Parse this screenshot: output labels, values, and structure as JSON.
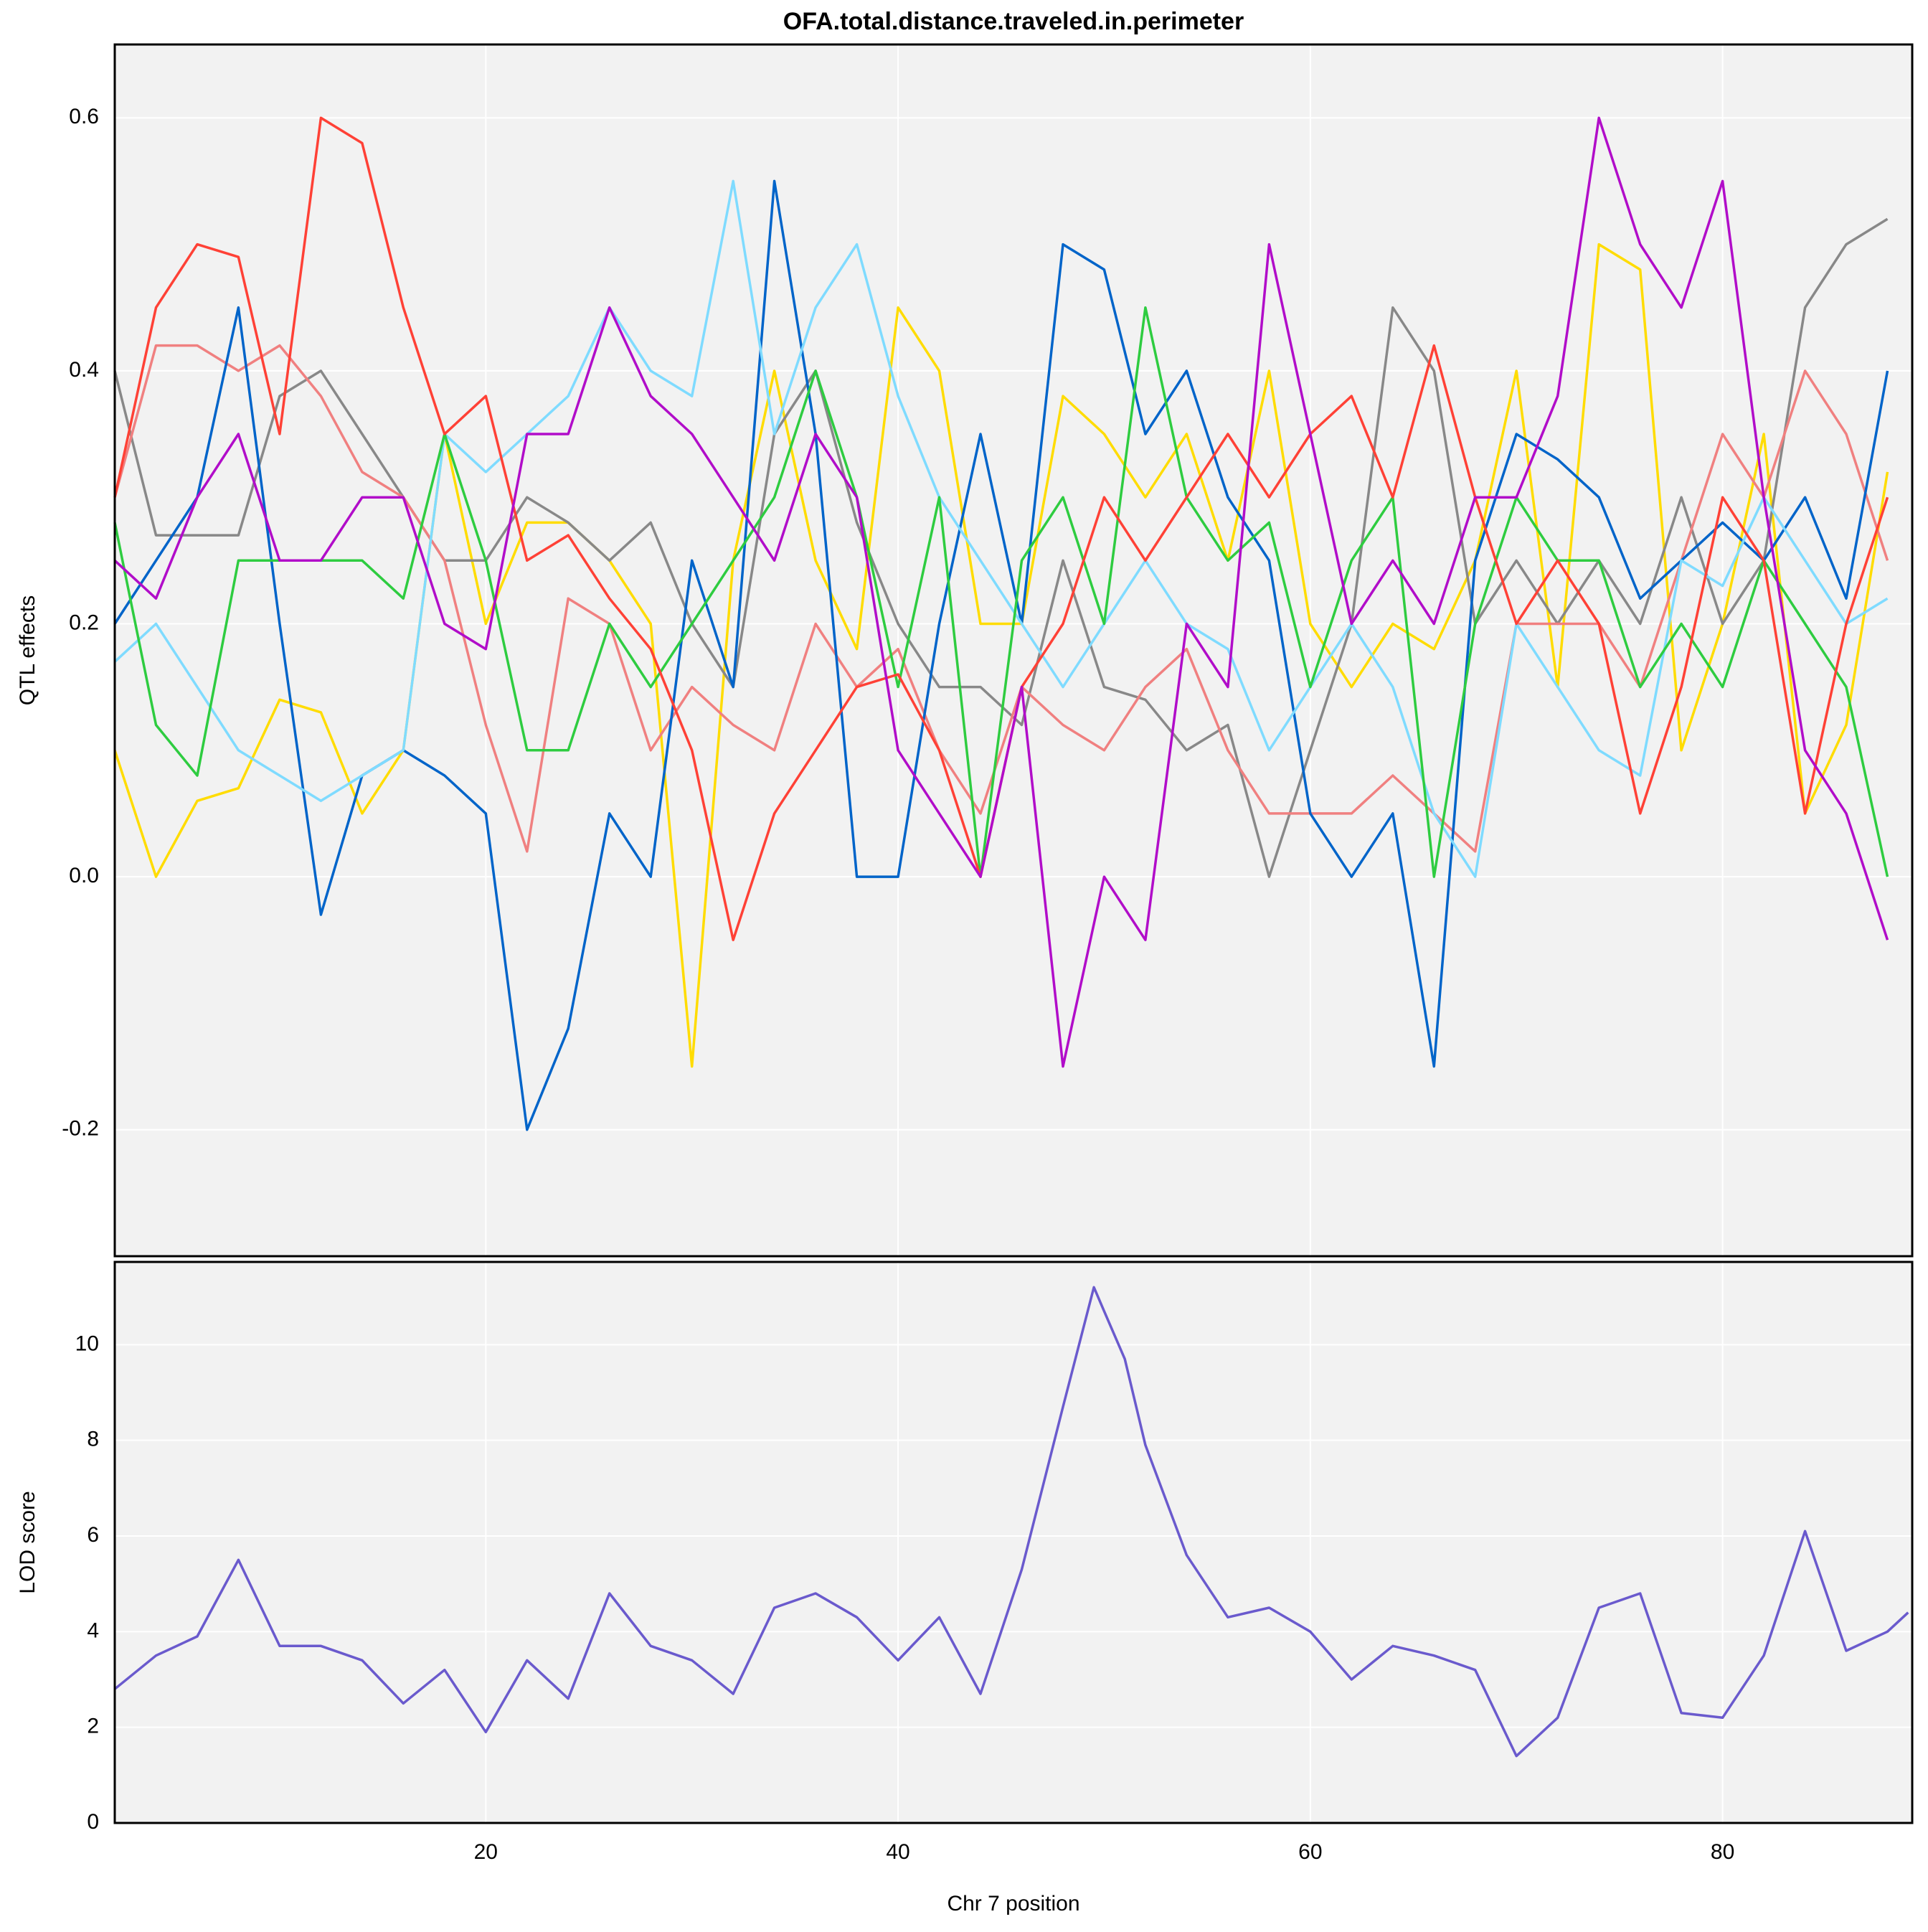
{
  "chart_data": [
    {
      "type": "line",
      "title": "OFA.total.distance.traveled.in.perimeter",
      "ylabel": "QTL effects",
      "x": [
        2,
        4,
        6,
        8,
        10,
        12,
        14,
        16,
        18,
        20,
        22,
        24,
        26,
        28,
        30,
        32,
        34,
        36,
        38,
        40,
        42,
        44,
        46,
        48,
        50,
        52,
        54,
        56,
        58,
        60,
        62,
        64,
        66,
        68,
        70,
        72,
        74,
        76,
        78,
        80,
        82,
        84,
        86,
        88
      ],
      "series": [
        {
          "color": "#FFDC00",
          "values": [
            0.1,
            0,
            0.06,
            0.07,
            0.14,
            0.13,
            0.05,
            0.1,
            0.35,
            0.2,
            0.28,
            0.28,
            0.25,
            0.2,
            -0.15,
            0.25,
            0.4,
            0.25,
            0.18,
            0.45,
            0.4,
            0.2,
            0.2,
            0.38,
            0.35,
            0.3,
            0.35,
            0.25,
            0.4,
            0.2,
            0.15,
            0.2,
            0.18,
            0.25,
            0.4,
            0.15,
            0.5,
            0.48,
            0.1,
            0.2,
            0.35,
            0.05,
            0.12,
            0.32
          ]
        },
        {
          "color": "#888888",
          "values": [
            0.4,
            0.27,
            0.27,
            0.27,
            0.38,
            0.4,
            0.35,
            0.3,
            0.25,
            0.25,
            0.3,
            0.28,
            0.25,
            0.28,
            0.2,
            0.15,
            0.35,
            0.4,
            0.28,
            0.2,
            0.15,
            0.15,
            0.12,
            0.25,
            0.15,
            0.14,
            0.1,
            0.12,
            0,
            0.1,
            0.2,
            0.45,
            0.4,
            0.2,
            0.25,
            0.2,
            0.25,
            0.2,
            0.3,
            0.2,
            0.25,
            0.45,
            0.5,
            0.52
          ]
        },
        {
          "color": "#F08080",
          "values": [
            0.3,
            0.42,
            0.42,
            0.4,
            0.42,
            0.38,
            0.32,
            0.3,
            0.25,
            0.12,
            0.02,
            0.22,
            0.2,
            0.1,
            0.15,
            0.12,
            0.1,
            0.2,
            0.15,
            0.18,
            0.1,
            0.05,
            0.15,
            0.12,
            0.1,
            0.15,
            0.18,
            0.1,
            0.05,
            0.05,
            0.05,
            0.08,
            0.05,
            0.02,
            0.2,
            0.2,
            0.2,
            0.15,
            0.25,
            0.35,
            0.3,
            0.4,
            0.35,
            0.25
          ]
        },
        {
          "color": "#0064C9",
          "values": [
            0.2,
            0.25,
            0.3,
            0.45,
            0.2,
            -0.03,
            0.08,
            0.1,
            0.08,
            0.05,
            -0.2,
            -0.12,
            0.05,
            0,
            0.25,
            0.15,
            0.55,
            0.35,
            0,
            0,
            0.2,
            0.35,
            0.2,
            0.5,
            0.48,
            0.35,
            0.4,
            0.3,
            0.25,
            0.05,
            0,
            0.05,
            -0.15,
            0.25,
            0.35,
            0.33,
            0.3,
            0.22,
            0.25,
            0.28,
            0.25,
            0.3,
            0.22,
            0.4
          ]
        },
        {
          "color": "#7FDBFF",
          "values": [
            0.17,
            0.2,
            0.15,
            0.1,
            0.08,
            0.06,
            0.08,
            0.1,
            0.35,
            0.32,
            0.35,
            0.38,
            0.45,
            0.4,
            0.38,
            0.55,
            0.35,
            0.45,
            0.5,
            0.38,
            0.3,
            0.25,
            0.2,
            0.15,
            0.2,
            0.25,
            0.2,
            0.18,
            0.1,
            0.15,
            0.2,
            0.15,
            0.05,
            0,
            0.2,
            0.15,
            0.1,
            0.08,
            0.25,
            0.23,
            0.3,
            0.25,
            0.2,
            0.22
          ]
        },
        {
          "color": "#2ECC40",
          "values": [
            0.28,
            0.12,
            0.08,
            0.25,
            0.25,
            0.25,
            0.25,
            0.22,
            0.35,
            0.25,
            0.1,
            0.1,
            0.2,
            0.15,
            0.2,
            0.25,
            0.3,
            0.4,
            0.3,
            0.15,
            0.3,
            0,
            0.25,
            0.3,
            0.2,
            0.45,
            0.3,
            0.25,
            0.28,
            0.15,
            0.25,
            0.3,
            0,
            0.2,
            0.3,
            0.25,
            0.25,
            0.15,
            0.2,
            0.15,
            0.25,
            0.2,
            0.15,
            0
          ]
        },
        {
          "color": "#FF4136",
          "values": [
            0.3,
            0.45,
            0.5,
            0.49,
            0.35,
            0.6,
            0.58,
            0.45,
            0.35,
            0.38,
            0.25,
            0.27,
            0.22,
            0.18,
            0.1,
            -0.05,
            0.05,
            0.1,
            0.15,
            0.16,
            0.1,
            0,
            0.15,
            0.2,
            0.3,
            0.25,
            0.3,
            0.35,
            0.3,
            0.35,
            0.38,
            0.3,
            0.42,
            0.3,
            0.2,
            0.25,
            0.2,
            0.05,
            0.15,
            0.3,
            0.25,
            0.05,
            0.2,
            0.3
          ]
        },
        {
          "color": "#B10DC9",
          "values": [
            0.25,
            0.22,
            0.3,
            0.35,
            0.25,
            0.25,
            0.3,
            0.3,
            0.2,
            0.18,
            0.35,
            0.35,
            0.45,
            0.38,
            0.35,
            0.3,
            0.25,
            0.35,
            0.3,
            0.1,
            0.05,
            0,
            0.15,
            -0.15,
            0,
            -0.05,
            0.2,
            0.15,
            0.5,
            0.35,
            0.2,
            0.25,
            0.2,
            0.3,
            0.3,
            0.38,
            0.6,
            0.5,
            0.45,
            0.55,
            0.3,
            0.1,
            0.05,
            -0.05
          ]
        }
      ],
      "xlim": [
        2,
        89.2
      ],
      "xticks": [
        20,
        40,
        60,
        80
      ],
      "ylim": [
        -0.3,
        0.658
      ],
      "yticks": [
        -0.2,
        {
          "value": 0,
          "label": "0.0"
        },
        0.2,
        0.4,
        0.6
      ],
      "grid": true
    },
    {
      "type": "line",
      "ylabel": "LOD score",
      "xlabel": "Chr 7 position",
      "x": [
        2,
        4,
        6,
        8,
        10,
        12,
        14,
        16,
        18,
        20,
        22,
        24,
        26,
        28,
        30,
        32,
        34,
        36,
        38,
        40,
        42,
        44,
        46,
        48,
        49.5,
        50,
        51,
        52,
        54,
        56,
        58,
        60,
        62,
        64,
        66,
        68,
        70,
        72,
        74,
        76,
        78,
        80,
        82,
        84,
        86,
        88,
        89
      ],
      "series": [
        {
          "color": "#6A5ACD",
          "values": [
            2.8,
            3.5,
            3.9,
            5.5,
            3.7,
            3.7,
            3.4,
            2.5,
            3.2,
            1.9,
            3.4,
            2.6,
            4.8,
            3.7,
            3.4,
            2.7,
            4.5,
            4.8,
            4.3,
            3.4,
            4.3,
            2.7,
            5.3,
            8.7,
            11.2,
            10.7,
            9.7,
            7.9,
            5.6,
            4.3,
            4.5,
            4.0,
            3.0,
            3.7,
            3.5,
            3.2,
            1.4,
            2.2,
            4.5,
            4.8,
            2.3,
            2.2,
            3.5,
            6.1,
            3.6,
            4.0,
            4.4
          ]
        }
      ],
      "xlim": [
        2,
        89.2
      ],
      "xticks": [
        20,
        40,
        60,
        80
      ],
      "ylim": [
        0,
        11.73
      ],
      "yticks": [
        0,
        2,
        4,
        6,
        8,
        10
      ],
      "grid": true
    }
  ]
}
